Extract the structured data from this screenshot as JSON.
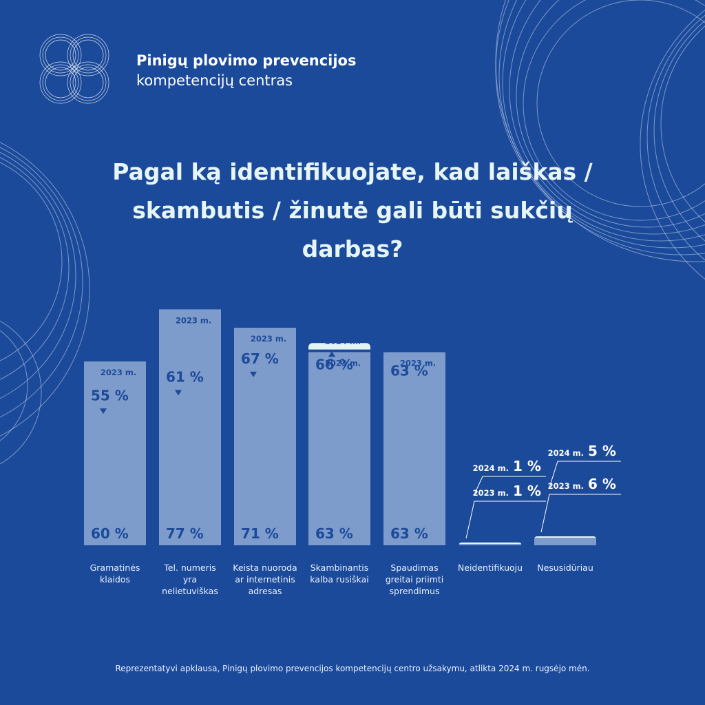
{
  "header": {
    "org_line1": "Pinigų plovimo prevencijos",
    "org_line2": "kompetencijų centras"
  },
  "title": "Pagal ką identifikuojate, kad laiškas / skambutis / žinutė gali būti sukčių darbas?",
  "footnote": "Reprezentatyvi apklausa, Pinigų plovimo prevencijos kompetencijų centro užsakymu, atlikta 2024 m. rugsėjo mėn.",
  "colors": {
    "background": "#1c4a9a",
    "bar_2024": "#e3f5f5",
    "bar_2023": "#7d9bcb",
    "text_dark": "#1c4a9a"
  },
  "chart_data": {
    "type": "bar",
    "categories": [
      "Gramatinės klaidos",
      "Tel. numeris yra nelietuviškas",
      "Keista nuoroda ar internetinis adresas",
      "Skambinantis kalba rusiškai",
      "Spaudimas greitai priimti sprendimus",
      "Neidentifikuoju",
      "Nesusidūriau"
    ],
    "series": [
      {
        "name": "2024 m.",
        "values": [
          55,
          61,
          67,
          66,
          63,
          1,
          5
        ]
      },
      {
        "name": "2023 m.",
        "values": [
          60,
          77,
          71,
          63,
          63,
          1,
          6
        ]
      }
    ],
    "value_labels_2024": [
      "55 %",
      "61 %",
      "67 %",
      "66 %",
      "63 %",
      "1 %",
      "5 %"
    ],
    "value_labels_2023": [
      "60 %",
      "77 %",
      "71 %",
      "63 %",
      "63 %",
      "1 %",
      "6 %"
    ],
    "trend": [
      "down",
      "down",
      "down",
      "up",
      "none",
      "none",
      "none"
    ],
    "year_label_2024": "2024 m.",
    "year_label_2023": "2023 m.",
    "chart_style": "overlapping bars, 2024 in light cyan drawn behind 2023 in muted blue"
  }
}
